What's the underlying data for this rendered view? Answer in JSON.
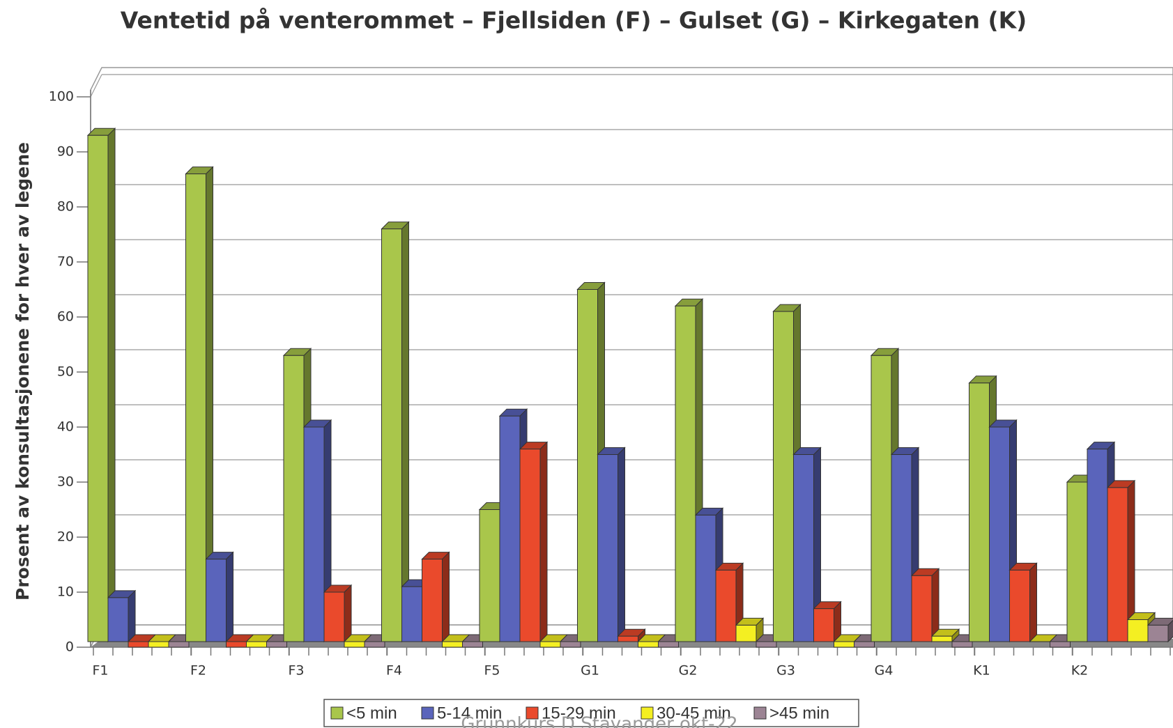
{
  "chart_data": {
    "type": "bar3d",
    "title": "Ventetid på venterommet – Fjellsiden (F) – Gulset (G) – Kirkegaten (K)",
    "y_label": "Prosent av konsultasjonene for hver av legene",
    "footer": "Grunnkurs D Stavanger okt-22",
    "categories": [
      "F1",
      "F2",
      "F3",
      "F4",
      "F5",
      "G1",
      "G2",
      "G3",
      "G4",
      "K1",
      "K2"
    ],
    "series": [
      {
        "name": "<5 min",
        "color": "#a9c64b",
        "values": [
          93,
          86,
          53,
          76,
          25,
          65,
          62,
          61,
          53,
          48,
          30
        ]
      },
      {
        "name": "5-14 min",
        "color": "#5a64bb",
        "values": [
          9,
          16,
          40,
          11,
          42,
          35,
          24,
          35,
          35,
          40,
          36
        ]
      },
      {
        "name": "15-29 min",
        "color": "#ea4a2c",
        "values": [
          0,
          0,
          10,
          16,
          36,
          2,
          14,
          7,
          13,
          14,
          29
        ]
      },
      {
        "name": "30-45 min",
        "color": "#f4ef22",
        "values": [
          0,
          0,
          0,
          0,
          0,
          0,
          4,
          0,
          2,
          1,
          5
        ]
      },
      {
        "name": ">45 min",
        "color": "#9c8494",
        "values": [
          0,
          0,
          0,
          0,
          0,
          0,
          0,
          0,
          0,
          0,
          4
        ]
      }
    ],
    "ylim": [
      0,
      100
    ],
    "yticks": [
      0,
      10,
      20,
      30,
      40,
      50,
      60,
      70,
      80,
      90,
      100
    ],
    "grid": true,
    "legend": "bottom"
  }
}
